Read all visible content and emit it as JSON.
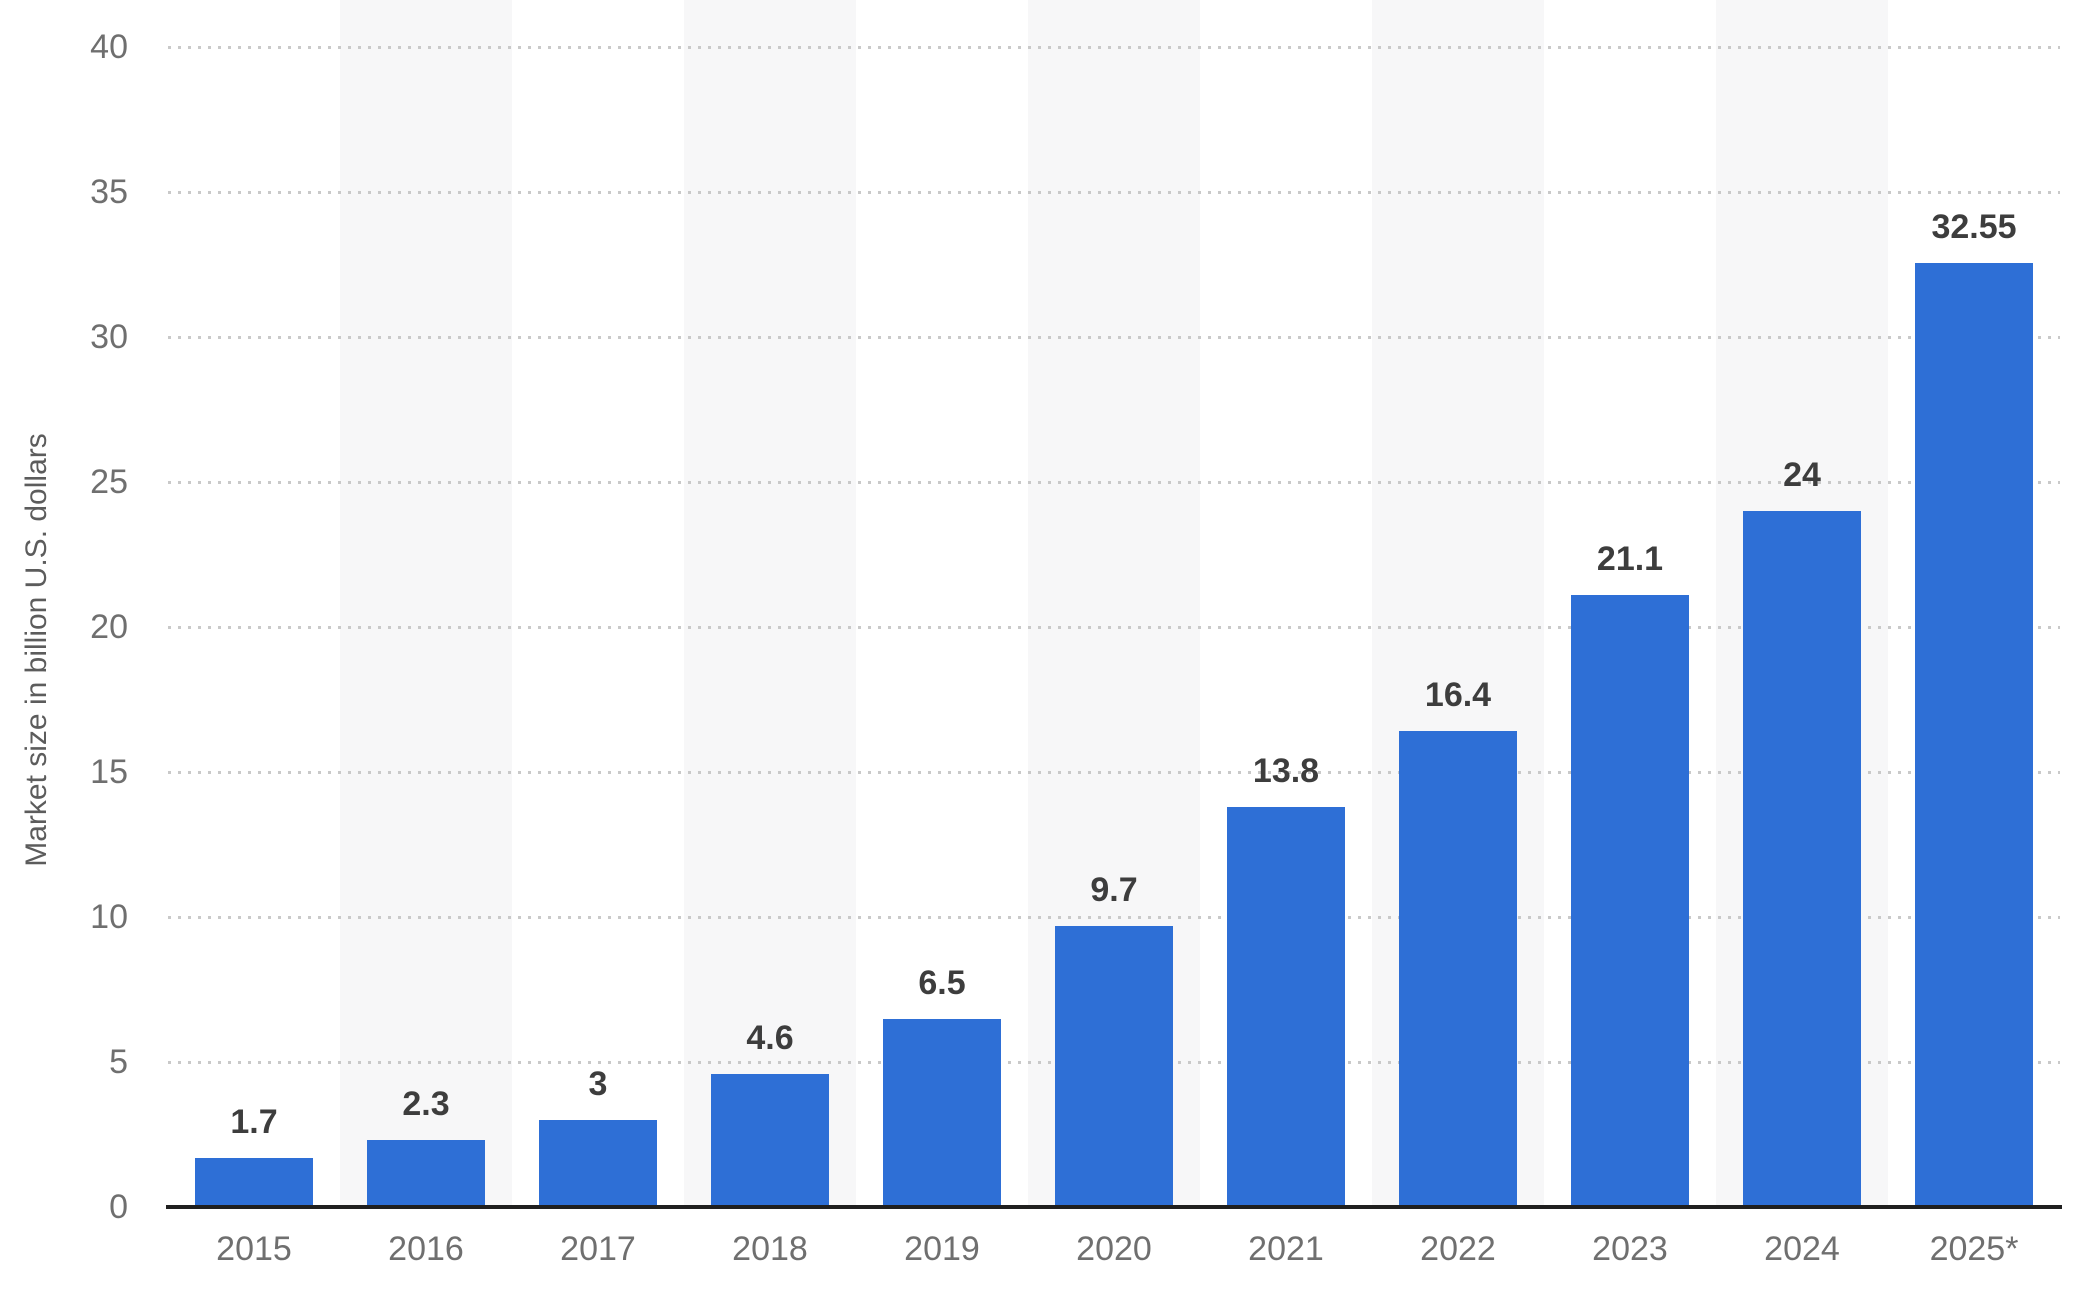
{
  "chart_data": {
    "type": "bar",
    "categories": [
      "2015",
      "2016",
      "2017",
      "2018",
      "2019",
      "2020",
      "2021",
      "2022",
      "2023",
      "2024",
      "2025*"
    ],
    "values": [
      1.7,
      2.3,
      3,
      4.6,
      6.5,
      9.7,
      13.8,
      16.4,
      21.1,
      24,
      32.55
    ],
    "value_labels": [
      "1.7",
      "2.3",
      "3",
      "4.6",
      "6.5",
      "9.7",
      "13.8",
      "16.4",
      "21.1",
      "24",
      "32.55"
    ],
    "title": "",
    "xlabel": "",
    "ylabel": "Market size in billion U.S. dollars",
    "ylim": [
      0,
      40
    ],
    "yticks": [
      0,
      5,
      10,
      15,
      20,
      25,
      30,
      35,
      40
    ],
    "grid": "horizontal-dotted",
    "legend": "none",
    "colors": {
      "bar": "#2e6fd6",
      "band": "#f7f7f8",
      "gridline": "#c9c9c9",
      "axis_line": "#1f1f1f",
      "tick_text": "#6f6f6f",
      "value_text": "#3d3d3d"
    }
  }
}
